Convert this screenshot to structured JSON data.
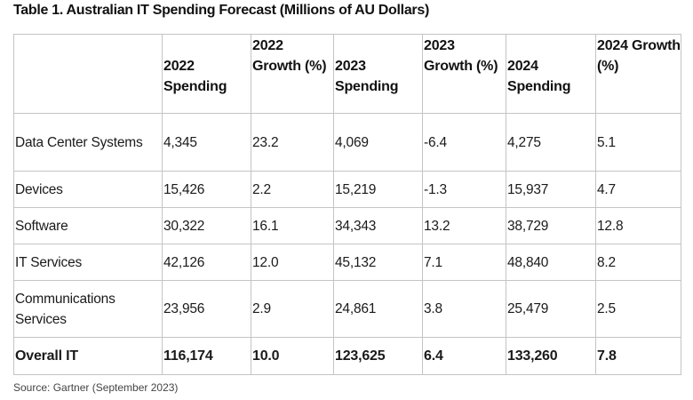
{
  "title": "Table 1. Australian IT Spending Forecast (Millions of AU Dollars)",
  "table": {
    "headers": [
      "",
      "2022 Spending",
      "2022 Growth (%)",
      "2023 Spending",
      "2023 Growth (%)",
      "2024 Spending",
      "2024 Growth (%)"
    ],
    "rows": [
      [
        "Data Center Systems",
        "4,345",
        "23.2",
        "4,069",
        "-6.4",
        "4,275",
        "5.1"
      ],
      [
        "Devices",
        "15,426",
        "2.2",
        "15,219",
        "-1.3",
        "15,937",
        "4.7"
      ],
      [
        "Software",
        "30,322",
        "16.1",
        "34,343",
        "13.2",
        "38,729",
        "12.8"
      ],
      [
        "IT Services",
        "42,126",
        "12.0",
        "45,132",
        "7.1",
        "48,840",
        "8.2"
      ],
      [
        "Communications Services",
        "23,956",
        "2.9",
        "24,861",
        "3.8",
        "25,479",
        "2.5"
      ],
      [
        "Overall IT",
        "116,174",
        "10.0",
        "123,625",
        "6.4",
        "133,260",
        "7.8"
      ]
    ]
  },
  "source": "Source: Gartner (September 2023)"
}
